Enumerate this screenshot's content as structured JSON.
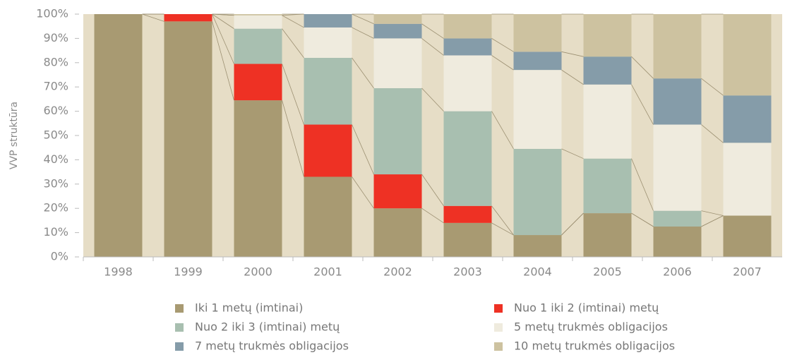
{
  "chart_data": {
    "type": "stacked_bar_100",
    "y_label": "VVP struktūra",
    "categories": [
      "1998",
      "1999",
      "2000",
      "2001",
      "2002",
      "2003",
      "2004",
      "2005",
      "2006",
      "2007"
    ],
    "series": [
      {
        "name": "Iki 1 metų (imtinai)",
        "color": "#a89a72",
        "values": [
          100,
          97,
          64.5,
          33,
          20,
          14,
          9,
          18,
          12.5,
          17
        ]
      },
      {
        "name": "Nuo 1 iki 2 (imtinai) metų",
        "color": "#ee3124",
        "values": [
          0,
          3,
          15,
          21.5,
          14,
          7,
          0,
          0,
          0,
          0
        ]
      },
      {
        "name": "Nuo 2 iki 3 (imtinai) metų",
        "color": "#a8bfb0",
        "values": [
          0,
          0,
          14.5,
          27.5,
          35.5,
          39,
          35.5,
          22.5,
          6.5,
          0
        ]
      },
      {
        "name": "5 metų trukmės obligacijos",
        "color": "#efebde",
        "values": [
          0,
          0,
          5.5,
          12.5,
          20.5,
          23,
          32.5,
          30.5,
          35.5,
          30
        ]
      },
      {
        "name": "7 metų trukmės obligacijos",
        "color": "#859ca9",
        "values": [
          0,
          0,
          0,
          5.5,
          6,
          7,
          7.5,
          11.5,
          19,
          19.5
        ]
      },
      {
        "name": "10 metų trukmės obligacijos",
        "color": "#cdc2a0",
        "values": [
          0,
          0,
          0.5,
          0,
          4,
          10,
          15.5,
          17.5,
          26.5,
          33.5
        ]
      }
    ],
    "ylim": [
      0,
      100
    ],
    "yticks": [
      {
        "value": 0,
        "label": "0%"
      },
      {
        "value": 10,
        "label": "10%"
      },
      {
        "value": 20,
        "label": "20%"
      },
      {
        "value": 30,
        "label": "30%"
      },
      {
        "value": 40,
        "label": "40%"
      },
      {
        "value": 50,
        "label": "50%"
      },
      {
        "value": 60,
        "label": "60%"
      },
      {
        "value": 70,
        "label": "70%"
      },
      {
        "value": 80,
        "label": "80%"
      },
      {
        "value": 90,
        "label": "90%"
      },
      {
        "value": 100,
        "label": "100%"
      }
    ]
  }
}
